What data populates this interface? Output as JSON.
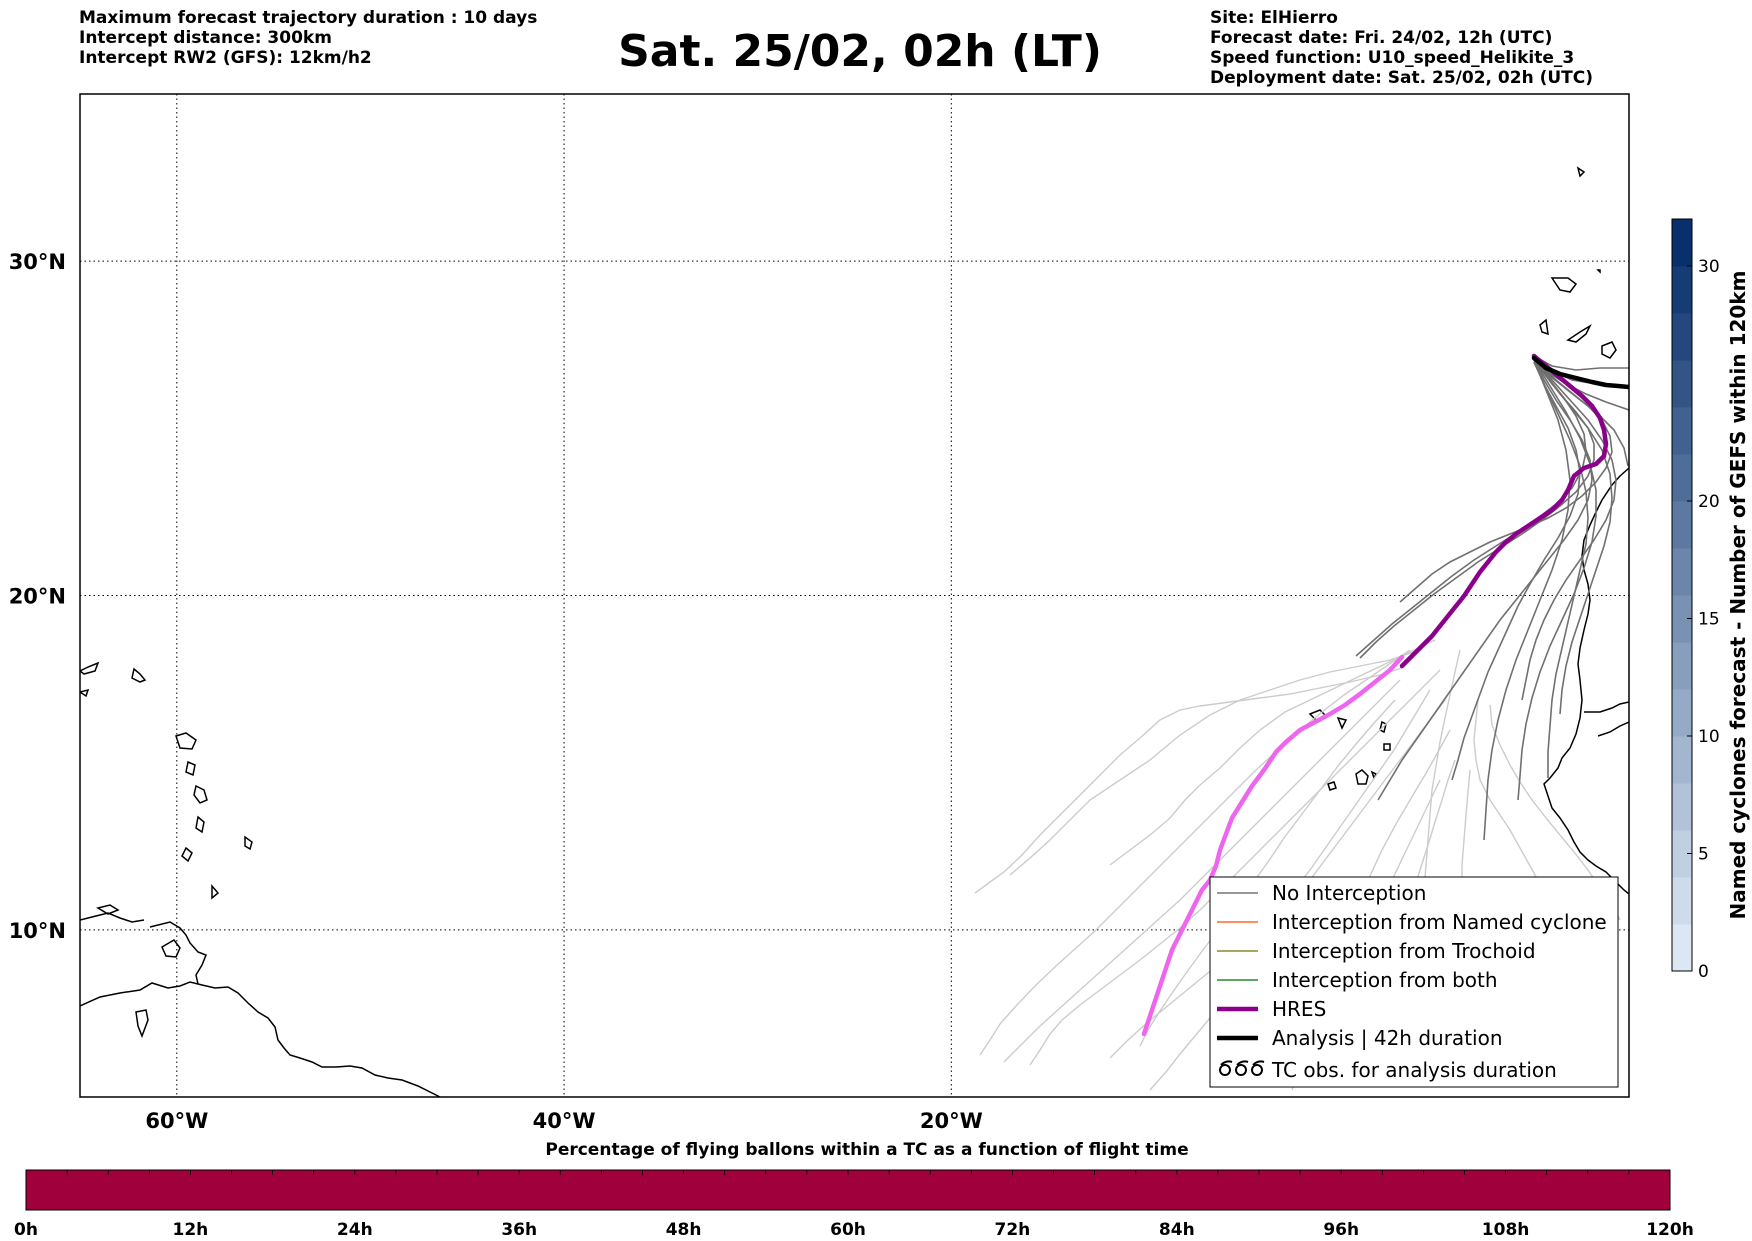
{
  "header": {
    "left_lines": [
      "Maximum forecast trajectory duration : 10 days",
      "Intercept distance: 300km",
      "Intercept RW2 (GFS):  12km/h2"
    ],
    "title": "Sat. 25/02, 02h (LT)",
    "right_lines": [
      "Site: ElHierro",
      "Forecast date: Fri. 24/02, 12h (UTC)",
      "Speed function: U10_speed_Helikite_3",
      "Deployment date: Sat. 25/02, 02h (UTC)"
    ]
  },
  "map": {
    "lon_range": [
      -65,
      15
    ],
    "lat_range": [
      5,
      35
    ],
    "lon_ticks": [
      {
        "value": -60,
        "label": "60°W"
      },
      {
        "value": -40,
        "label": "40°W"
      },
      {
        "value": -20,
        "label": "20°W"
      }
    ],
    "lat_ticks": [
      {
        "value": 30,
        "label": "30°N"
      },
      {
        "value": 20,
        "label": "20°N"
      },
      {
        "value": 10,
        "label": "10°N"
      }
    ],
    "grid": true,
    "grid_style": "dotted",
    "colors": {
      "no_interception": "#777777",
      "interception_named_cyclone": "#ff6a2a",
      "interception_trochoid": "#8a8a2a",
      "interception_both": "#2a8a2a",
      "hres_early": "#8b008b",
      "hres_late": "#ee66ee",
      "analysis": "#000000",
      "light_tracks": "#cccccc",
      "coast": "#000000"
    }
  },
  "legend": {
    "placement": "bottom-right",
    "items": [
      {
        "label": "No Interception",
        "icon": "thin-line-gray-icon"
      },
      {
        "label": "Interception from Named cyclone",
        "icon": "thin-line-orange-icon"
      },
      {
        "label": "Interception from Trochoid",
        "icon": "thin-line-olive-icon"
      },
      {
        "label": "Interception from both",
        "icon": "thin-line-green-icon"
      },
      {
        "label": "HRES",
        "icon": "thick-line-purple-icon"
      },
      {
        "label": "Analysis | 42h duration",
        "icon": "thick-line-black-icon"
      },
      {
        "label": "TC obs. for analysis duration",
        "icon": "cyclone-symbols-icon"
      }
    ]
  },
  "colorbar_right": {
    "label": "Named cyclones forecast - Number of GEFS within 120km",
    "range": [
      0,
      32
    ],
    "ticks": [
      {
        "value": 0,
        "label": "0"
      },
      {
        "value": 5,
        "label": "5"
      },
      {
        "value": 10,
        "label": "10"
      },
      {
        "value": 15,
        "label": "15"
      },
      {
        "value": 20,
        "label": "20"
      },
      {
        "value": 30,
        "label": "30"
      }
    ],
    "steps": 16,
    "color_low": "#dce7f4",
    "color_high": "#08306b"
  },
  "colorbar_bottom": {
    "title": "Percentage of flying ballons within a TC as a function of flight time",
    "range_hours": [
      0,
      120
    ],
    "tick_labels": [
      "0h",
      "12h",
      "24h",
      "36h",
      "48h",
      "60h",
      "72h",
      "84h",
      "96h",
      "108h",
      "120h"
    ],
    "fill_color": "#a0003c",
    "segments": 40
  }
}
